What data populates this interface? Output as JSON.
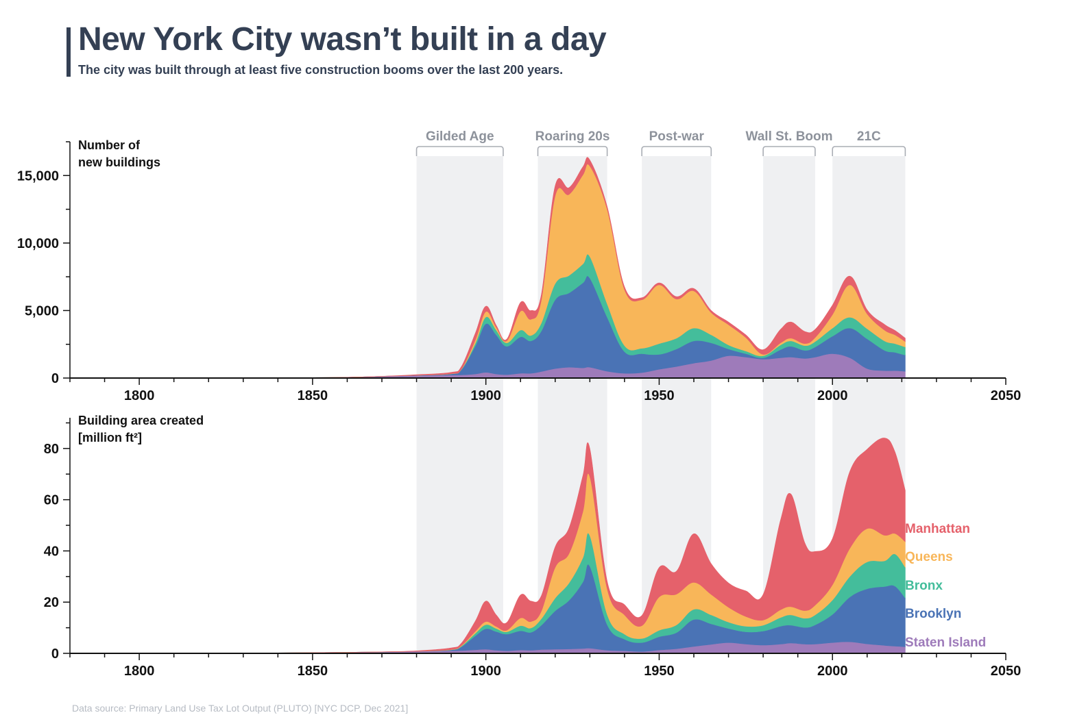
{
  "header": {
    "title": "New York City wasn’t built in a day",
    "subtitle": "The city was built through at least five construction booms over the last 200 years."
  },
  "footer": {
    "source": "Data source: Primary Land Use Tax Lot Output (PLUTO) [NYC DCP, Dec 2021]"
  },
  "colors": {
    "Staten Island": "#9e7bba",
    "Brooklyn": "#4a73b5",
    "Bronx": "#44bd9b",
    "Queens": "#f8b659",
    "Manhattan": "#e5616b",
    "booms": "#eff0f2",
    "boom_label": "#8d929b",
    "axis": "#111111"
  },
  "chart_data": [
    {
      "type": "area",
      "stacked": true,
      "ylabel": [
        "Number of",
        "new buildings"
      ],
      "xlim": [
        1780,
        2050
      ],
      "ylim": [
        0,
        17500
      ],
      "xticks": [
        1800,
        1850,
        1900,
        1950,
        2000,
        2050
      ],
      "yticks": [
        0,
        5000,
        10000,
        15000
      ],
      "ytick_labels": [
        "0",
        "5,000",
        "10,000",
        "15,000"
      ],
      "booms": [
        {
          "label": "Gilded Age",
          "start": 1880,
          "end": 1905
        },
        {
          "label": "Roaring 20s",
          "start": 1915,
          "end": 1935
        },
        {
          "label": "Post-war",
          "start": 1945,
          "end": 1965
        },
        {
          "label": "Wall St. Boom",
          "start": 1980,
          "end": 1995
        },
        {
          "label": "21C",
          "start": 2000,
          "end": 2021
        }
      ],
      "x": [
        1783,
        1840,
        1860,
        1870,
        1880,
        1890,
        1893,
        1897,
        1900,
        1903,
        1906,
        1910,
        1913,
        1916,
        1920,
        1924,
        1928,
        1930,
        1935,
        1940,
        1945,
        1950,
        1955,
        1960,
        1965,
        1970,
        1975,
        1980,
        1985,
        1988,
        1992,
        1995,
        2000,
        2005,
        2010,
        2015,
        2018,
        2021
      ],
      "series": [
        {
          "name": "Staten Island",
          "values": [
            0,
            20,
            60,
            130,
            180,
            220,
            230,
            300,
            420,
            300,
            250,
            350,
            350,
            480,
            700,
            800,
            750,
            800,
            500,
            350,
            400,
            650,
            850,
            1100,
            1300,
            1650,
            1550,
            1400,
            1500,
            1550,
            1450,
            1550,
            1800,
            1500,
            700,
            550,
            550,
            500
          ]
        },
        {
          "name": "Brooklyn",
          "values": [
            0,
            0,
            0,
            0,
            20,
            80,
            400,
            2100,
            3600,
            2900,
            2100,
            2700,
            2400,
            3000,
            5100,
            5500,
            6300,
            6600,
            4000,
            1600,
            1400,
            1100,
            1300,
            1650,
            1300,
            500,
            250,
            100,
            600,
            800,
            600,
            750,
            1300,
            2200,
            2200,
            1500,
            1350,
            1200
          ]
        },
        {
          "name": "Bronx",
          "values": [
            0,
            0,
            0,
            0,
            0,
            10,
            30,
            200,
            500,
            350,
            250,
            500,
            400,
            600,
            1200,
            1300,
            1400,
            1600,
            1000,
            450,
            400,
            800,
            800,
            950,
            600,
            300,
            200,
            150,
            350,
            400,
            350,
            400,
            600,
            800,
            750,
            700,
            650,
            600
          ]
        },
        {
          "name": "Queens",
          "values": [
            0,
            0,
            0,
            0,
            0,
            10,
            20,
            250,
            400,
            200,
            150,
            1400,
            1200,
            1700,
            6500,
            6000,
            6600,
            6700,
            7000,
            4150,
            3600,
            4350,
            2900,
            2750,
            1650,
            1500,
            1000,
            100,
            150,
            200,
            150,
            300,
            1000,
            2400,
            1100,
            800,
            650,
            400
          ]
        },
        {
          "name": "Manhattan",
          "values": [
            0,
            0,
            0,
            0,
            50,
            100,
            200,
            500,
            400,
            150,
            120,
            650,
            650,
            400,
            750,
            500,
            600,
            450,
            200,
            200,
            150,
            150,
            180,
            180,
            150,
            200,
            200,
            350,
            1000,
            1200,
            900,
            600,
            700,
            650,
            300,
            420,
            330,
            250
          ]
        }
      ]
    },
    {
      "type": "area",
      "stacked": true,
      "ylabel": [
        "Building area created",
        "[million ft²]"
      ],
      "xlim": [
        1780,
        2050
      ],
      "ylim": [
        0,
        92
      ],
      "xticks": [
        1800,
        1850,
        1900,
        1950,
        2000,
        2050
      ],
      "yticks": [
        0,
        20,
        40,
        60,
        80
      ],
      "ytick_labels": [
        "0",
        "20",
        "40",
        "60",
        "80"
      ],
      "x": [
        1783,
        1840,
        1860,
        1870,
        1880,
        1890,
        1893,
        1897,
        1900,
        1903,
        1906,
        1910,
        1913,
        1916,
        1920,
        1924,
        1928,
        1930,
        1935,
        1940,
        1945,
        1950,
        1955,
        1960,
        1965,
        1970,
        1975,
        1980,
        1985,
        1988,
        1992,
        1995,
        2000,
        2005,
        2010,
        2015,
        2018,
        2021
      ],
      "series": [
        {
          "name": "Staten Island",
          "values": [
            0,
            0.2,
            0.4,
            0.6,
            0.8,
            1.0,
            1.1,
            1.4,
            1.6,
            1.2,
            1.0,
            1.3,
            1.2,
            1.5,
            1.6,
            1.7,
            1.9,
            2.0,
            1.2,
            1.0,
            0.7,
            1.3,
            1.8,
            2.7,
            3.5,
            4.2,
            3.6,
            3.2,
            3.6,
            4.0,
            3.6,
            3.6,
            4.2,
            4.5,
            3.7,
            3.1,
            2.8,
            2.6
          ]
        },
        {
          "name": "Brooklyn",
          "values": [
            0,
            0,
            0,
            0,
            0,
            0.3,
            1.5,
            5.5,
            8.0,
            7.3,
            6.5,
            7.5,
            7.0,
            9.5,
            15.0,
            19.0,
            26.0,
            32.0,
            10.0,
            4.5,
            3.5,
            5.2,
            6.3,
            10.5,
            8.0,
            5.5,
            4.8,
            5.5,
            7.0,
            7.0,
            6.5,
            7.5,
            11.0,
            17.5,
            21.5,
            23.0,
            23.5,
            19.0
          ]
        },
        {
          "name": "Bronx",
          "values": [
            0,
            0,
            0,
            0,
            0,
            0.1,
            0.3,
            1.0,
            1.6,
            1.2,
            0.9,
            2.0,
            1.7,
            2.5,
            5.0,
            6.8,
            9.5,
            12.0,
            4.0,
            2.0,
            1.6,
            2.5,
            3.0,
            4.0,
            3.5,
            2.5,
            2.2,
            2.3,
            3.4,
            4.0,
            3.6,
            3.9,
            5.6,
            8.0,
            10.5,
            10.0,
            12.5,
            12.0
          ]
        },
        {
          "name": "Queens",
          "values": [
            0,
            0,
            0,
            0,
            0,
            0.1,
            0.2,
            0.8,
            1.2,
            0.8,
            0.6,
            3.0,
            2.5,
            3.0,
            12.0,
            11.5,
            18.0,
            23.0,
            10.0,
            7.5,
            5.0,
            13.0,
            12.0,
            10.5,
            8.0,
            5.8,
            3.8,
            2.0,
            3.0,
            3.2,
            3.0,
            3.8,
            6.0,
            11.0,
            13.0,
            10.0,
            8.0,
            10.0
          ]
        },
        {
          "name": "Manhattan",
          "values": [
            0,
            0,
            0,
            0,
            0.2,
            0.6,
            1.0,
            4.0,
            8.0,
            4.5,
            3.0,
            9.0,
            8.0,
            6.0,
            8.0,
            10.0,
            14.0,
            11.0,
            3.0,
            4.0,
            4.0,
            11.5,
            9.0,
            19.0,
            12.0,
            9.5,
            10.0,
            10.0,
            35.0,
            44.0,
            26.5,
            21.0,
            18.0,
            30.0,
            31.0,
            38.0,
            32.0,
            20.0
          ]
        }
      ]
    }
  ]
}
